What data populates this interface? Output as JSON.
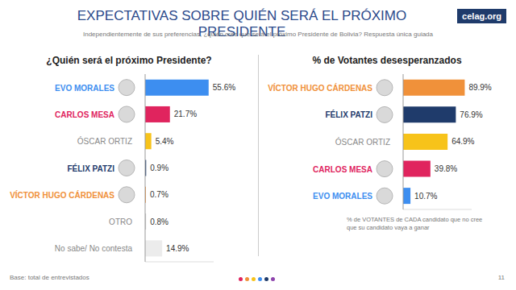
{
  "title": "EXPECTATIVAS SOBRE QUIÉN SERÁ EL PRÓXIMO PRESIDENTE",
  "subtitle": "Independientemente de sus preferencias, ¿quién cree que será el próximo Presidente de Bolivia? Respuesta única guiada",
  "logo": "celag.org",
  "footer": {
    "base": "Base: total de entrevistados",
    "page": "11"
  },
  "chart_data": [
    {
      "type": "bar",
      "orientation": "horizontal",
      "title": "¿Quién será el próximo Presidente?",
      "categories": [
        "EVO MORALES",
        "CARLOS MESA",
        "ÓSCAR ORTIZ",
        "FÉLIX PATZI",
        "VÍCTOR HUGO CÁRDENAS",
        "OTRO",
        "No sabe/ No contesta"
      ],
      "values": [
        55.6,
        21.7,
        5.4,
        0.9,
        0.7,
        0.8,
        14.9
      ],
      "value_labels": [
        "55.6%",
        "21.7%",
        "5.4%",
        "0.9%",
        "0.7%",
        "0.8%",
        "14.9%"
      ],
      "colors": [
        "#3d8ef0",
        "#e0245e",
        "#f7c31a",
        "#1f3b6b",
        "#f0913a",
        "#c8c8c8",
        "#ececec"
      ],
      "xlim": [
        0,
        60
      ],
      "data_labels": true,
      "tick_labels": "y",
      "grid": false
    },
    {
      "type": "bar",
      "orientation": "horizontal",
      "title": "% de Votantes desesperanzados",
      "categories": [
        "VÍCTOR HUGO CÁRDENAS",
        "FÉLIX PATZI",
        "ÓSCAR ORTIZ",
        "CARLOS MESA",
        "EVO MORALES"
      ],
      "values": [
        89.9,
        76.9,
        64.9,
        39.8,
        10.7
      ],
      "value_labels": [
        "89.9%",
        "76.9%",
        "64.9%",
        "39.8%",
        "10.7%"
      ],
      "colors": [
        "#f0913a",
        "#1f3b6b",
        "#f7c31a",
        "#e0245e",
        "#3d8ef0"
      ],
      "xlim": [
        0,
        100
      ],
      "annotation": "% de VOTANTES de CADA candidato que no cree que su candidato vaya a ganar",
      "data_labels": true,
      "tick_labels": "y",
      "grid": false
    }
  ]
}
